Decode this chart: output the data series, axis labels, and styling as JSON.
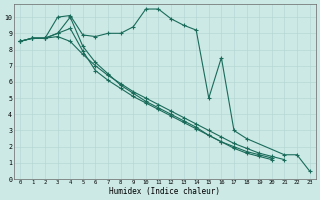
{
  "xlabel": "Humidex (Indice chaleur)",
  "bg_color": "#cce9e5",
  "grid_color": "#b0d5d0",
  "line_color": "#1a6b5a",
  "xlim": [
    -0.5,
    23.5
  ],
  "ylim": [
    0,
    10.8
  ],
  "xticks": [
    0,
    1,
    2,
    3,
    4,
    5,
    6,
    7,
    8,
    9,
    10,
    11,
    12,
    13,
    14,
    15,
    16,
    17,
    18,
    19,
    20,
    21,
    22,
    23
  ],
  "yticks": [
    0,
    1,
    2,
    3,
    4,
    5,
    6,
    7,
    8,
    9,
    10
  ],
  "series": [
    {
      "x": [
        0,
        1,
        2,
        3,
        4,
        5,
        6,
        7,
        8,
        9,
        10,
        11,
        12,
        13,
        14,
        15,
        16,
        17,
        18,
        19,
        20,
        21
      ],
      "y": [
        8.5,
        8.7,
        8.7,
        8.8,
        8.5,
        7.7,
        7.0,
        6.4,
        5.9,
        5.4,
        5.0,
        4.6,
        4.2,
        3.8,
        3.4,
        3.0,
        2.6,
        2.2,
        1.9,
        1.6,
        1.4,
        1.2
      ]
    },
    {
      "x": [
        0,
        1,
        2,
        3,
        4,
        5,
        6,
        7,
        8,
        9,
        10,
        11,
        12,
        13,
        14,
        15,
        16,
        17,
        18,
        21,
        22,
        23
      ],
      "y": [
        8.5,
        8.7,
        8.7,
        10.0,
        10.1,
        8.9,
        8.8,
        9.0,
        9.0,
        9.4,
        10.5,
        10.5,
        9.9,
        9.5,
        9.2,
        5.0,
        7.5,
        3.0,
        2.5,
        1.5,
        1.5,
        0.5
      ]
    },
    {
      "x": [
        0,
        1,
        2,
        3,
        4,
        5,
        6,
        7,
        8,
        9,
        10,
        11,
        12,
        13,
        14,
        15,
        16,
        17,
        18,
        19,
        20
      ],
      "y": [
        8.5,
        8.7,
        8.7,
        9.0,
        9.3,
        7.9,
        6.7,
        6.1,
        5.6,
        5.1,
        4.7,
        4.3,
        3.9,
        3.5,
        3.1,
        2.7,
        2.3,
        2.0,
        1.7,
        1.5,
        1.3
      ]
    },
    {
      "x": [
        0,
        1,
        2,
        3,
        4,
        5,
        6,
        7,
        8,
        9,
        10,
        11,
        12,
        13,
        14,
        15,
        16,
        17,
        18,
        19,
        20
      ],
      "y": [
        8.5,
        8.7,
        8.7,
        9.0,
        10.0,
        8.2,
        7.2,
        6.5,
        5.8,
        5.3,
        4.8,
        4.4,
        4.0,
        3.6,
        3.2,
        2.7,
        2.3,
        1.9,
        1.6,
        1.4,
        1.2
      ]
    }
  ]
}
